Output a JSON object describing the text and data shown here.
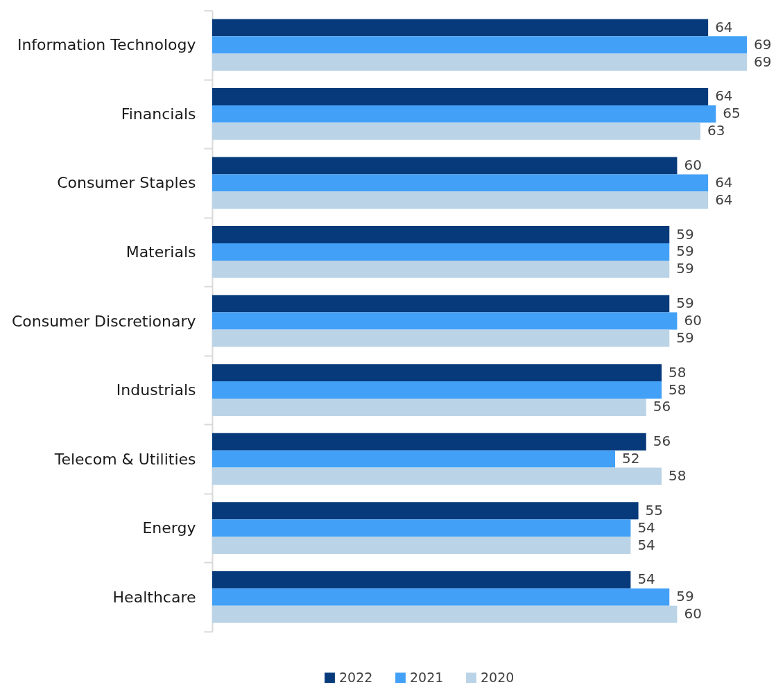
{
  "chart_data": {
    "type": "bar",
    "orientation": "horizontal",
    "categories": [
      "Information Technology",
      "Financials",
      "Consumer Staples",
      "Materials",
      "Consumer Discretionary",
      "Industrials",
      "Telecom & Utilities",
      "Energy",
      "Healthcare"
    ],
    "series": [
      {
        "name": "2022",
        "color": "#063a7a",
        "values": [
          64,
          64,
          60,
          59,
          59,
          58,
          56,
          55,
          54
        ]
      },
      {
        "name": "2021",
        "color": "#42a0f7",
        "values": [
          69,
          65,
          64,
          59,
          60,
          58,
          52,
          54,
          59
        ]
      },
      {
        "name": "2020",
        "color": "#bad3e6",
        "values": [
          69,
          63,
          64,
          59,
          59,
          56,
          58,
          54,
          60
        ]
      }
    ],
    "data_labels": true,
    "legend": "bottom",
    "grid": false,
    "tick_labels": "y"
  }
}
